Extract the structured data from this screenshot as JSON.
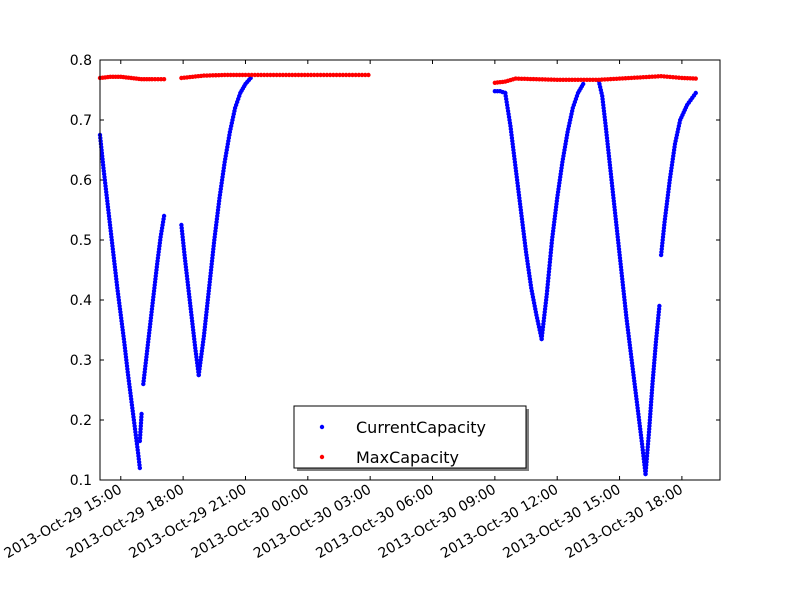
{
  "chart_data": {
    "type": "scatter",
    "title": "",
    "xlabel": "",
    "ylabel": "",
    "grid": false,
    "legend_position": "bottom-center",
    "xlim": [
      "2013-10-29 14:00",
      "2013-10-30 19:50"
    ],
    "ylim": [
      0.1,
      0.8
    ],
    "x_ticks": [
      {
        "value": "2013-10-29 15:00",
        "label": "2013-Oct-29 15:00"
      },
      {
        "value": "2013-10-29 18:00",
        "label": "2013-Oct-29 18:00"
      },
      {
        "value": "2013-10-29 21:00",
        "label": "2013-Oct-29 21:00"
      },
      {
        "value": "2013-10-30 00:00",
        "label": "2013-Oct-30 00:00"
      },
      {
        "value": "2013-10-30 03:00",
        "label": "2013-Oct-30 03:00"
      },
      {
        "value": "2013-10-30 06:00",
        "label": "2013-Oct-30 06:00"
      },
      {
        "value": "2013-10-30 09:00",
        "label": "2013-Oct-30 09:00"
      },
      {
        "value": "2013-10-30 12:00",
        "label": "2013-Oct-30 12:00"
      },
      {
        "value": "2013-10-30 15:00",
        "label": "2013-Oct-30 15:00"
      },
      {
        "value": "2013-10-30 18:00",
        "label": "2013-Oct-30 18:00"
      }
    ],
    "y_ticks": [
      {
        "value": 0.1,
        "label": "0.1"
      },
      {
        "value": 0.2,
        "label": "0.2"
      },
      {
        "value": 0.3,
        "label": "0.3"
      },
      {
        "value": 0.4,
        "label": "0.4"
      },
      {
        "value": 0.5,
        "label": "0.5"
      },
      {
        "value": 0.6,
        "label": "0.6"
      },
      {
        "value": 0.7,
        "label": "0.7"
      },
      {
        "value": 0.8,
        "label": "0.8"
      }
    ],
    "series": [
      {
        "name": "CurrentCapacity",
        "color": "#0000ff",
        "segments": [
          [
            [
              "2013-10-29 14:00",
              0.675
            ],
            [
              "2013-10-29 14:10",
              0.62
            ],
            [
              "2013-10-29 14:20",
              0.57
            ],
            [
              "2013-10-29 14:30",
              0.52
            ],
            [
              "2013-10-29 14:40",
              0.47
            ],
            [
              "2013-10-29 14:50",
              0.42
            ],
            [
              "2013-10-29 15:00",
              0.375
            ],
            [
              "2013-10-29 15:10",
              0.33
            ],
            [
              "2013-10-29 15:20",
              0.28
            ],
            [
              "2013-10-29 15:30",
              0.235
            ],
            [
              "2013-10-29 15:40",
              0.19
            ],
            [
              "2013-10-29 15:50",
              0.145
            ],
            [
              "2013-10-29 15:55",
              0.12
            ]
          ],
          [
            [
              "2013-10-29 15:55",
              0.165
            ],
            [
              "2013-10-29 16:00",
              0.21
            ]
          ],
          [
            [
              "2013-10-29 16:05",
              0.26
            ],
            [
              "2013-10-29 16:15",
              0.31
            ],
            [
              "2013-10-29 16:25",
              0.36
            ],
            [
              "2013-10-29 16:35",
              0.41
            ],
            [
              "2013-10-29 16:45",
              0.46
            ],
            [
              "2013-10-29 16:55",
              0.505
            ],
            [
              "2013-10-29 17:05",
              0.54
            ]
          ],
          [
            [
              "2013-10-29 17:55",
              0.525
            ],
            [
              "2013-10-29 18:05",
              0.47
            ],
            [
              "2013-10-29 18:15",
              0.42
            ],
            [
              "2013-10-29 18:25",
              0.37
            ],
            [
              "2013-10-29 18:35",
              0.32
            ],
            [
              "2013-10-29 18:45",
              0.275
            ]
          ],
          [
            [
              "2013-10-29 18:45",
              0.275
            ],
            [
              "2013-10-29 19:00",
              0.34
            ],
            [
              "2013-10-29 19:15",
              0.42
            ],
            [
              "2013-10-29 19:30",
              0.5
            ],
            [
              "2013-10-29 19:45",
              0.57
            ],
            [
              "2013-10-29 20:00",
              0.63
            ],
            [
              "2013-10-29 20:15",
              0.68
            ],
            [
              "2013-10-29 20:30",
              0.72
            ],
            [
              "2013-10-29 20:45",
              0.745
            ],
            [
              "2013-10-29 21:00",
              0.76
            ],
            [
              "2013-10-29 21:15",
              0.77
            ]
          ],
          [
            [
              "2013-10-30 09:00",
              0.748
            ],
            [
              "2013-10-30 09:15",
              0.748
            ],
            [
              "2013-10-30 09:30",
              0.745
            ]
          ],
          [
            [
              "2013-10-30 09:30",
              0.745
            ],
            [
              "2013-10-30 09:45",
              0.69
            ],
            [
              "2013-10-30 10:00",
              0.62
            ],
            [
              "2013-10-30 10:15",
              0.55
            ],
            [
              "2013-10-30 10:30",
              0.48
            ],
            [
              "2013-10-30 10:45",
              0.42
            ],
            [
              "2013-10-30 11:00",
              0.375
            ],
            [
              "2013-10-30 11:15",
              0.335
            ]
          ],
          [
            [
              "2013-10-30 11:15",
              0.335
            ],
            [
              "2013-10-30 11:30",
              0.41
            ],
            [
              "2013-10-30 11:45",
              0.5
            ],
            [
              "2013-10-30 12:00",
              0.57
            ],
            [
              "2013-10-30 12:15",
              0.63
            ],
            [
              "2013-10-30 12:30",
              0.68
            ],
            [
              "2013-10-30 12:45",
              0.72
            ],
            [
              "2013-10-30 13:00",
              0.745
            ],
            [
              "2013-10-30 13:15",
              0.76
            ]
          ],
          [
            [
              "2013-10-30 14:00",
              0.765
            ],
            [
              "2013-10-30 14:10",
              0.74
            ],
            [
              "2013-10-30 14:20",
              0.69
            ],
            [
              "2013-10-30 14:35",
              0.61
            ],
            [
              "2013-10-30 14:50",
              0.53
            ],
            [
              "2013-10-30 15:05",
              0.45
            ],
            [
              "2013-10-30 15:20",
              0.37
            ],
            [
              "2013-10-30 15:35",
              0.3
            ],
            [
              "2013-10-30 15:50",
              0.23
            ],
            [
              "2013-10-30 16:05",
              0.16
            ],
            [
              "2013-10-30 16:15",
              0.11
            ]
          ],
          [
            [
              "2013-10-30 16:15",
              0.11
            ],
            [
              "2013-10-30 16:25",
              0.18
            ],
            [
              "2013-10-30 16:35",
              0.26
            ],
            [
              "2013-10-30 16:45",
              0.33
            ],
            [
              "2013-10-30 16:55",
              0.39
            ]
          ],
          [
            [
              "2013-10-30 17:00",
              0.475
            ],
            [
              "2013-10-30 17:10",
              0.53
            ],
            [
              "2013-10-30 17:25",
              0.6
            ],
            [
              "2013-10-30 17:40",
              0.66
            ],
            [
              "2013-10-30 17:55",
              0.7
            ],
            [
              "2013-10-30 18:15",
              0.725
            ],
            [
              "2013-10-30 18:40",
              0.745
            ]
          ]
        ]
      },
      {
        "name": "MaxCapacity",
        "color": "#ff0000",
        "segments": [
          [
            [
              "2013-10-29 14:00",
              0.77
            ],
            [
              "2013-10-29 14:30",
              0.772
            ],
            [
              "2013-10-29 15:00",
              0.772
            ],
            [
              "2013-10-29 15:30",
              0.77
            ],
            [
              "2013-10-29 16:00",
              0.768
            ],
            [
              "2013-10-29 16:30",
              0.768
            ],
            [
              "2013-10-29 17:05",
              0.768
            ]
          ],
          [
            [
              "2013-10-29 17:55",
              0.77
            ],
            [
              "2013-10-29 19:00",
              0.774
            ],
            [
              "2013-10-29 20:00",
              0.775
            ],
            [
              "2013-10-29 21:00",
              0.775
            ],
            [
              "2013-10-30 00:00",
              0.775
            ],
            [
              "2013-10-30 02:55",
              0.775
            ]
          ],
          [
            [
              "2013-10-30 09:00",
              0.762
            ],
            [
              "2013-10-30 09:30",
              0.764
            ],
            [
              "2013-10-30 10:00",
              0.769
            ],
            [
              "2013-10-30 11:00",
              0.768
            ],
            [
              "2013-10-30 12:00",
              0.767
            ],
            [
              "2013-10-30 13:00",
              0.767
            ],
            [
              "2013-10-30 14:00",
              0.767
            ],
            [
              "2013-10-30 15:00",
              0.769
            ],
            [
              "2013-10-30 16:00",
              0.771
            ],
            [
              "2013-10-30 17:00",
              0.773
            ],
            [
              "2013-10-30 18:00",
              0.77
            ],
            [
              "2013-10-30 18:40",
              0.769
            ]
          ]
        ]
      }
    ]
  }
}
